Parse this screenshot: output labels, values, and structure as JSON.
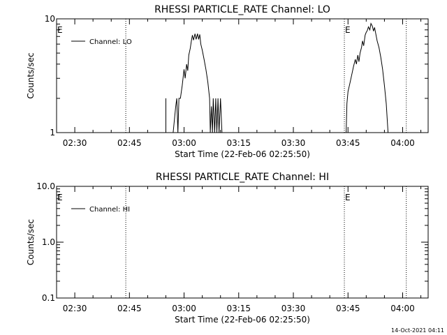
{
  "footer": {
    "timestamp": "14-Oct-2021 04:11"
  },
  "chart_data": [
    {
      "type": "line",
      "title": "RHESSI PARTICLE_RATE Channel: LO",
      "xlabel": "Start Time (22-Feb-06 02:25:50)",
      "ylabel": "Counts/sec",
      "yscale": "log",
      "ylim": [
        1,
        10
      ],
      "xlim": [
        "02:25",
        "04:07"
      ],
      "y_ticks": [
        "1",
        "10"
      ],
      "x_ticks": [
        "02:30",
        "02:45",
        "03:00",
        "03:15",
        "03:30",
        "03:45",
        "04:00"
      ],
      "legend": {
        "label": "Channel: LO",
        "placement": "top-left"
      },
      "event_markers": [
        {
          "time": "02:44",
          "label": ""
        },
        {
          "time": "03:44",
          "label": "E"
        },
        {
          "time": "04:01",
          "label": ""
        }
      ],
      "left_edge_label": "E",
      "series": [
        {
          "name": "Channel: LO",
          "segments": [
            [
              [
                "02:55.0",
                1.0
              ],
              [
                "02:55.0",
                2.0
              ]
            ],
            [
              [
                "02:57.0",
                1.0
              ],
              [
                "02:57.7",
                1.7
              ],
              [
                "02:58.0",
                2.0
              ],
              [
                "02:58.3",
                1.0
              ],
              [
                "02:58.6",
                2.0
              ],
              [
                "02:59.0",
                2.0
              ],
              [
                "02:59.5",
                2.6
              ],
              [
                "03:00.0",
                3.6
              ],
              [
                "03:00.3",
                3.0
              ],
              [
                "03:00.7",
                4.0
              ],
              [
                "03:01.0",
                3.5
              ],
              [
                "03:01.3",
                4.8
              ],
              [
                "03:01.7",
                5.5
              ],
              [
                "03:02.0",
                6.4
              ],
              [
                "03:02.3",
                7.2
              ],
              [
                "03:02.6",
                6.5
              ],
              [
                "03:03.0",
                7.4
              ],
              [
                "03:03.3",
                6.6
              ],
              [
                "03:03.7",
                7.4
              ],
              [
                "03:04.0",
                6.6
              ],
              [
                "03:04.3",
                7.3
              ],
              [
                "03:04.6",
                6.0
              ],
              [
                "03:05.0",
                5.3
              ],
              [
                "03:05.5",
                4.4
              ],
              [
                "03:06.0",
                3.6
              ],
              [
                "03:06.5",
                2.8
              ],
              [
                "03:07.0",
                2.0
              ],
              [
                "03:07.2",
                1.0
              ],
              [
                "03:07.5",
                1.7
              ],
              [
                "03:07.8",
                1.0
              ],
              [
                "03:08.0",
                2.0
              ],
              [
                "03:08.4",
                1.0
              ],
              [
                "03:08.7",
                2.0
              ],
              [
                "03:09.0",
                1.0
              ],
              [
                "03:09.3",
                2.0
              ],
              [
                "03:09.6",
                1.0
              ],
              [
                "03:10.0",
                2.0
              ],
              [
                "03:10.4",
                1.0
              ]
            ],
            [
              [
                "03:44.5",
                1.0
              ],
              [
                "03:44.7",
                1.8
              ],
              [
                "03:45.0",
                2.3
              ],
              [
                "03:45.5",
                2.7
              ],
              [
                "03:46.0",
                3.2
              ],
              [
                "03:46.5",
                3.8
              ],
              [
                "03:47.0",
                4.4
              ],
              [
                "03:47.3",
                4.0
              ],
              [
                "03:47.7",
                4.8
              ],
              [
                "03:48.0",
                4.2
              ],
              [
                "03:48.3",
                5.0
              ],
              [
                "03:48.7",
                5.6
              ],
              [
                "03:49.0",
                6.4
              ],
              [
                "03:49.3",
                5.8
              ],
              [
                "03:49.7",
                7.2
              ],
              [
                "03:50.0",
                7.6
              ],
              [
                "03:50.3",
                7.9
              ],
              [
                "03:50.6",
                8.5
              ],
              [
                "03:51.0",
                8.0
              ],
              [
                "03:51.3",
                9.1
              ],
              [
                "03:51.7",
                8.6
              ],
              [
                "03:52.0",
                7.8
              ],
              [
                "03:52.3",
                8.4
              ],
              [
                "03:52.7",
                7.2
              ],
              [
                "03:53.0",
                6.4
              ],
              [
                "03:53.5",
                5.6
              ],
              [
                "03:54.0",
                4.6
              ],
              [
                "03:54.5",
                3.6
              ],
              [
                "03:55.0",
                2.6
              ],
              [
                "03:55.5",
                1.8
              ],
              [
                "03:56.0",
                1.0
              ]
            ]
          ]
        }
      ]
    },
    {
      "type": "line",
      "title": "RHESSI PARTICLE_RATE Channel: HI",
      "xlabel": "Start Time (22-Feb-06 02:25:50)",
      "ylabel": "Counts/sec",
      "yscale": "log",
      "ylim": [
        0.1,
        10
      ],
      "xlim": [
        "02:25",
        "04:07"
      ],
      "y_ticks": [
        "0.1",
        "1.0",
        "10.0"
      ],
      "x_ticks": [
        "02:30",
        "02:45",
        "03:00",
        "03:15",
        "03:30",
        "03:45",
        "04:00"
      ],
      "legend": {
        "label": "Channel: HI",
        "placement": "top-left"
      },
      "event_markers": [
        {
          "time": "02:44",
          "label": ""
        },
        {
          "time": "03:44",
          "label": "E"
        },
        {
          "time": "04:01",
          "label": ""
        }
      ],
      "left_edge_label": "E",
      "series": [
        {
          "name": "Channel: HI",
          "segments": []
        }
      ]
    }
  ]
}
